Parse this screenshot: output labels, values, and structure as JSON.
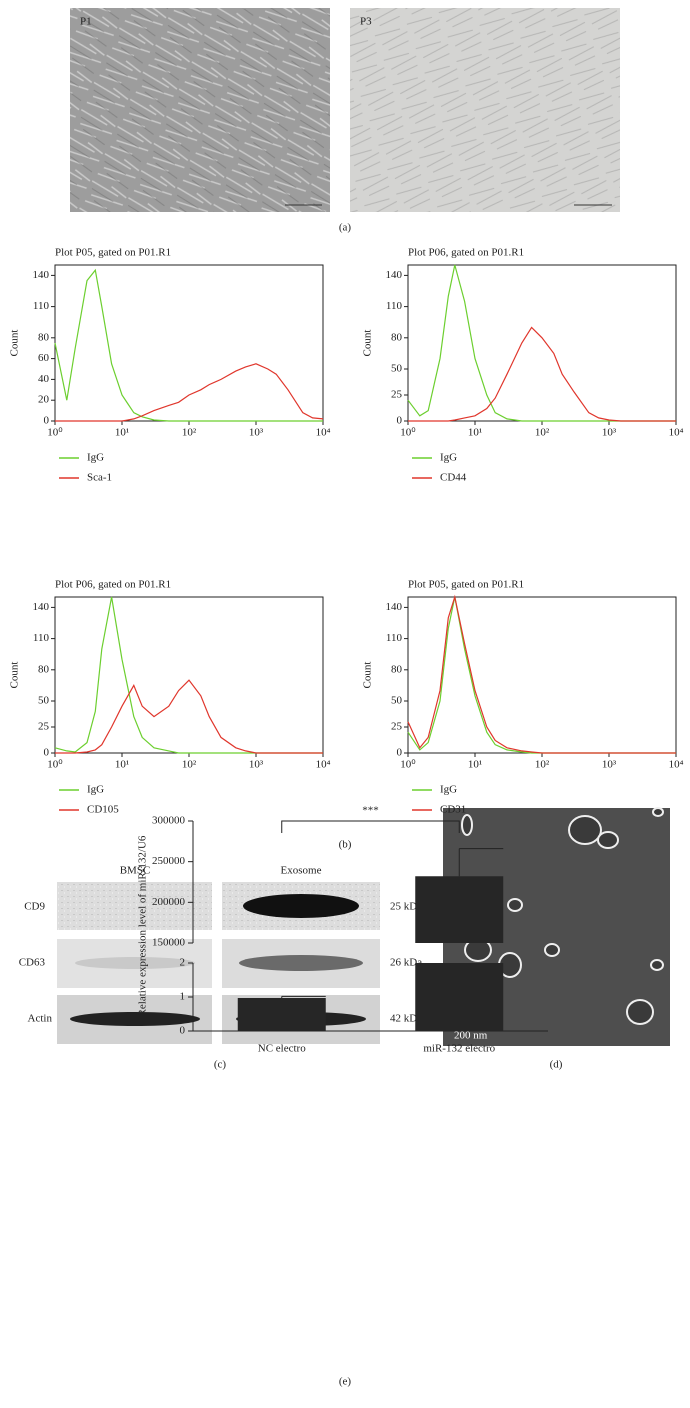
{
  "figure": {
    "panel_labels": [
      "(a)",
      "(b)",
      "(c)",
      "(d)",
      "(e)"
    ],
    "micrographs": [
      {
        "label": "P1"
      },
      {
        "label": "P3"
      }
    ],
    "western_blot": {
      "samples": [
        "BMSC",
        "Exosome"
      ],
      "markers": [
        {
          "name": "CD9",
          "size": "25 kDa"
        },
        {
          "name": "CD63",
          "size": "26 kDa"
        },
        {
          "name": "Actin",
          "size": "42 kDa"
        }
      ]
    },
    "tem": {
      "scale_bar": "200 nm"
    }
  },
  "chart_data": [
    {
      "type": "line",
      "title": "Plot P05, gated on P01.R1",
      "y_label": "Count",
      "log_x": true,
      "x": [
        1,
        1.5,
        2,
        3,
        4,
        5,
        7,
        10,
        15,
        20,
        30,
        50,
        70,
        100,
        150,
        200,
        300,
        500,
        700,
        1000,
        1500,
        2000,
        3000,
        5000,
        7000,
        10000
      ],
      "xlim": [
        1,
        10000
      ],
      "ylim": [
        0,
        150
      ],
      "xticks": [
        {
          "value": 1,
          "label": "10⁰"
        },
        {
          "value": 10,
          "label": "10¹"
        },
        {
          "value": 100,
          "label": "10²"
        },
        {
          "value": 1000,
          "label": "10³"
        },
        {
          "value": 10000,
          "label": "10⁴"
        }
      ],
      "yticks": [
        0,
        20,
        40,
        60,
        80,
        110,
        140
      ],
      "series": [
        {
          "name": "IgG",
          "color": "#6ccf2f",
          "values": [
            75,
            20,
            70,
            135,
            145,
            110,
            55,
            25,
            8,
            4,
            1,
            0,
            0,
            0,
            0,
            0,
            0,
            0,
            0,
            0,
            0,
            0,
            0,
            0,
            0,
            0
          ]
        },
        {
          "name": "Sca-1",
          "color": "#e0362c",
          "values": [
            0,
            0,
            0,
            0,
            0,
            0,
            0,
            0,
            2,
            5,
            10,
            15,
            18,
            25,
            30,
            35,
            40,
            48,
            52,
            55,
            50,
            45,
            30,
            8,
            3,
            2
          ]
        }
      ]
    },
    {
      "type": "line",
      "title": "Plot P06, gated on P01.R1",
      "y_label": "Count",
      "log_x": true,
      "x": [
        1,
        1.5,
        2,
        3,
        4,
        5,
        7,
        10,
        15,
        20,
        30,
        50,
        70,
        100,
        150,
        200,
        300,
        500,
        700,
        1000,
        1500,
        2000,
        3000,
        5000,
        7000,
        10000
      ],
      "xlim": [
        1,
        10000
      ],
      "ylim": [
        0,
        150
      ],
      "xticks": [
        {
          "value": 1,
          "label": "10⁰"
        },
        {
          "value": 10,
          "label": "10¹"
        },
        {
          "value": 100,
          "label": "10²"
        },
        {
          "value": 1000,
          "label": "10³"
        },
        {
          "value": 10000,
          "label": "10⁴"
        }
      ],
      "yticks": [
        0,
        25,
        50,
        80,
        110,
        140
      ],
      "series": [
        {
          "name": "IgG",
          "color": "#6ccf2f",
          "values": [
            20,
            5,
            10,
            60,
            120,
            150,
            115,
            60,
            25,
            8,
            2,
            0,
            0,
            0,
            0,
            0,
            0,
            0,
            0,
            0,
            0,
            0,
            0,
            0,
            0,
            0
          ]
        },
        {
          "name": "CD44",
          "color": "#e0362c",
          "values": [
            0,
            0,
            0,
            0,
            0,
            1,
            3,
            5,
            12,
            22,
            45,
            75,
            90,
            80,
            65,
            45,
            28,
            8,
            3,
            1,
            0,
            0,
            0,
            0,
            0,
            0
          ]
        }
      ]
    },
    {
      "type": "line",
      "title": "Plot P06, gated on P01.R1",
      "y_label": "Count",
      "log_x": true,
      "x": [
        1,
        1.5,
        2,
        3,
        4,
        5,
        7,
        10,
        15,
        20,
        30,
        50,
        70,
        100,
        150,
        200,
        300,
        500,
        700,
        1000,
        1500,
        2000,
        3000,
        5000,
        7000,
        10000
      ],
      "xlim": [
        1,
        10000
      ],
      "ylim": [
        0,
        150
      ],
      "xticks": [
        {
          "value": 1,
          "label": "10⁰"
        },
        {
          "value": 10,
          "label": "10¹"
        },
        {
          "value": 100,
          "label": "10²"
        },
        {
          "value": 1000,
          "label": "10³"
        },
        {
          "value": 10000,
          "label": "10⁴"
        }
      ],
      "yticks": [
        0,
        25,
        50,
        80,
        110,
        140
      ],
      "series": [
        {
          "name": "IgG",
          "color": "#6ccf2f",
          "values": [
            5,
            2,
            1,
            10,
            40,
            100,
            150,
            90,
            35,
            15,
            5,
            2,
            0,
            0,
            0,
            0,
            0,
            0,
            0,
            0,
            0,
            0,
            0,
            0,
            0,
            0
          ]
        },
        {
          "name": "CD105",
          "color": "#e0362c",
          "values": [
            0,
            0,
            0,
            1,
            3,
            8,
            25,
            45,
            65,
            45,
            35,
            45,
            60,
            70,
            55,
            35,
            15,
            5,
            2,
            0,
            0,
            0,
            0,
            0,
            0,
            0
          ]
        }
      ]
    },
    {
      "type": "line",
      "title": "Plot P05, gated on P01.R1",
      "y_label": "Count",
      "log_x": true,
      "x": [
        1,
        1.5,
        2,
        3,
        4,
        5,
        7,
        10,
        15,
        20,
        30,
        50,
        70,
        100,
        150,
        200,
        300,
        500,
        700,
        1000,
        1500,
        2000,
        3000,
        5000,
        7000,
        10000
      ],
      "xlim": [
        1,
        10000
      ],
      "ylim": [
        0,
        150
      ],
      "xticks": [
        {
          "value": 1,
          "label": "10⁰"
        },
        {
          "value": 10,
          "label": "10¹"
        },
        {
          "value": 100,
          "label": "10²"
        },
        {
          "value": 1000,
          "label": "10³"
        },
        {
          "value": 10000,
          "label": "10⁴"
        }
      ],
      "yticks": [
        0,
        25,
        50,
        80,
        110,
        140
      ],
      "series": [
        {
          "name": "IgG",
          "color": "#6ccf2f",
          "values": [
            20,
            3,
            10,
            50,
            120,
            150,
            100,
            55,
            20,
            8,
            3,
            1,
            0,
            0,
            0,
            0,
            0,
            0,
            0,
            0,
            0,
            0,
            0,
            0,
            0,
            0
          ]
        },
        {
          "name": "CD31",
          "color": "#e0362c",
          "values": [
            30,
            5,
            15,
            60,
            130,
            150,
            105,
            60,
            25,
            12,
            5,
            2,
            1,
            0,
            0,
            0,
            0,
            0,
            0,
            0,
            0,
            0,
            0,
            0,
            0,
            0
          ]
        }
      ]
    },
    {
      "type": "bar",
      "y_label": "Relative expression level of miR-132/U6",
      "categories": [
        "NC electro",
        "miR-132 electro"
      ],
      "values": [
        0.97,
        232000
      ],
      "errors": [
        0.05,
        34000
      ],
      "color": "#262626",
      "ylim": [
        0,
        300000
      ],
      "axis_break": [
        2,
        150000
      ],
      "yticks": [
        0,
        1,
        2,
        150000,
        200000,
        250000,
        300000
      ],
      "significance": "***"
    }
  ]
}
